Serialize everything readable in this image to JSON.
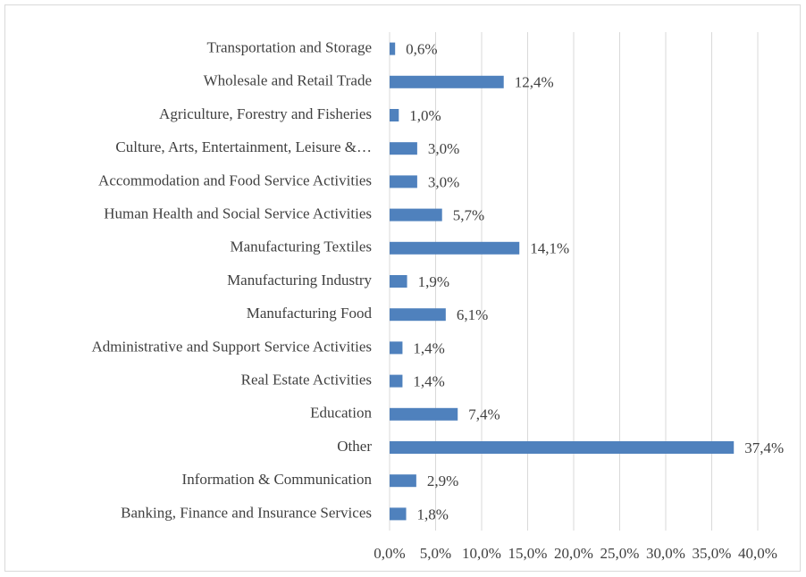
{
  "chart_data": {
    "type": "bar",
    "orientation": "horizontal",
    "categories": [
      "Transportation and Storage",
      "Wholesale and Retail Trade",
      "Agriculture, Forestry and Fisheries",
      "Culture, Arts, Entertainment, Leisure &…",
      "Accommodation and Food Service Activities",
      "Human Health and Social Service Activities",
      "Manufacturing Textiles",
      "Manufacturing Industry",
      "Manufacturing Food",
      "Administrative and Support Service Activities",
      "Real Estate Activities",
      "Education",
      "Other",
      "Information & Communication",
      "Banking, Finance and Insurance Services"
    ],
    "values": [
      0.6,
      12.4,
      1.0,
      3.0,
      3.0,
      5.7,
      14.1,
      1.9,
      6.1,
      1.4,
      1.4,
      7.4,
      37.4,
      2.9,
      1.8
    ],
    "value_labels": [
      "0,6%",
      "12,4%",
      "1,0%",
      "3,0%",
      "3,0%",
      "5,7%",
      "14,1%",
      "1,9%",
      "6,1%",
      "1,4%",
      "1,4%",
      "7,4%",
      "37,4%",
      "2,9%",
      "1,8%"
    ],
    "color": "#4f81bd",
    "xlim": [
      0,
      40
    ],
    "xticks": [
      {
        "value": 0,
        "label": "0,0%"
      },
      {
        "value": 5,
        "label": "5,0%"
      },
      {
        "value": 10,
        "label": "10,0%"
      },
      {
        "value": 15,
        "label": "15,0%"
      },
      {
        "value": 20,
        "label": "20,0%"
      },
      {
        "value": 25,
        "label": "25,0%"
      },
      {
        "value": 30,
        "label": "30,0%"
      },
      {
        "value": 35,
        "label": "35,0%"
      },
      {
        "value": 40,
        "label": "40,0%"
      }
    ],
    "grid": true
  }
}
